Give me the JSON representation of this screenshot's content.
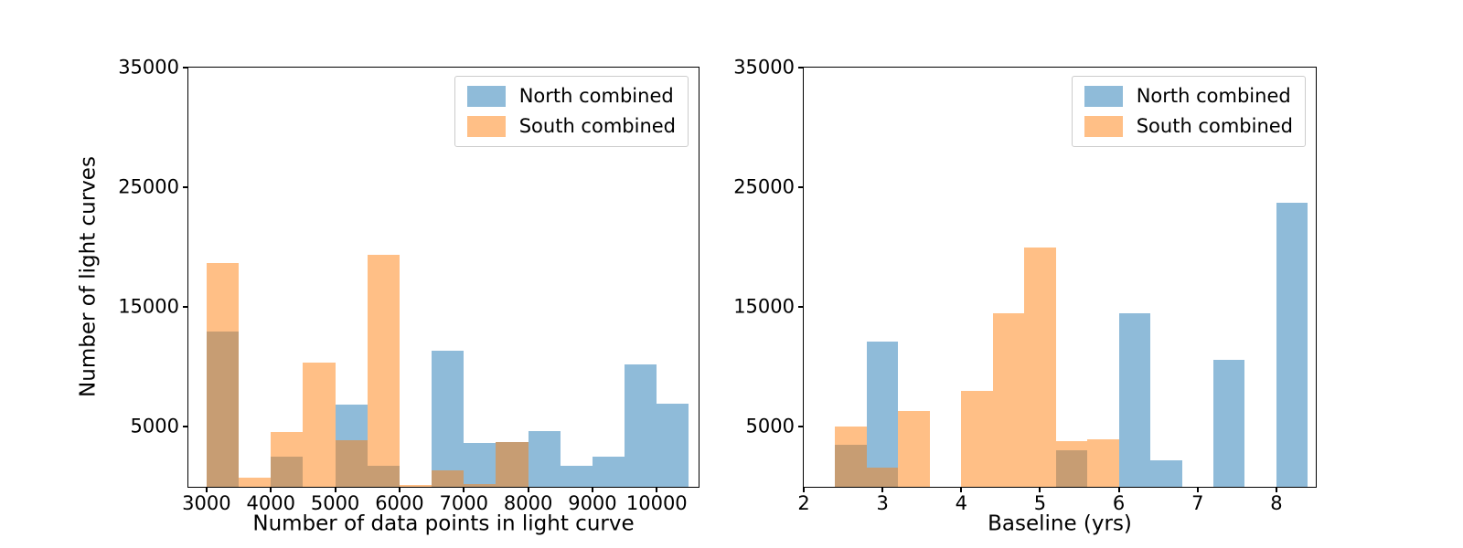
{
  "figure": {
    "background": "#ffffff",
    "north_color": "rgba(31,119,180,0.5)",
    "south_color": "rgba(255,127,14,0.5)",
    "north_color_flat": "#8fbbd9",
    "south_color_flat": "#ffbf87",
    "overlap_color_flat": "#c79d74",
    "legend_border_color": "#cccccc"
  },
  "chart_data": [
    {
      "type": "histogram",
      "title": "",
      "xlabel": "Number of data points in light curve",
      "ylabel": "Number of light curves",
      "xlim": [
        2717,
        10650
      ],
      "ylim": [
        0,
        35000
      ],
      "xticks": [
        3000,
        4000,
        5000,
        6000,
        7000,
        8000,
        9000,
        10000
      ],
      "yticks": [
        5000,
        15000,
        25000,
        35000
      ],
      "grid": false,
      "legend_position": "upper right",
      "bin_edges": [
        3000,
        3500,
        4000,
        4500,
        5000,
        5500,
        6000,
        6500,
        7000,
        7500,
        8000,
        8500,
        9000,
        9500,
        10000,
        10500
      ],
      "series": [
        {
          "name": "North combined",
          "color": "rgba(31,119,180,0.5)",
          "counts": [
            13000,
            0,
            2500,
            0,
            6900,
            1750,
            0,
            11400,
            3650,
            3700,
            4650,
            1750,
            2500,
            10250,
            6950
          ]
        },
        {
          "name": "South combined",
          "color": "rgba(255,127,14,0.5)",
          "counts": [
            18650,
            800,
            4600,
            10400,
            3900,
            19400,
            150,
            1400,
            200,
            3750,
            0,
            0,
            0,
            0,
            0
          ]
        }
      ]
    },
    {
      "type": "histogram",
      "title": "",
      "xlabel": "Baseline (yrs)",
      "ylabel": "",
      "xlim": [
        2.0,
        8.5
      ],
      "ylim": [
        0,
        35000
      ],
      "xticks": [
        2,
        3,
        4,
        5,
        6,
        7,
        8
      ],
      "yticks": [
        5000,
        15000,
        25000,
        35000
      ],
      "grid": false,
      "legend_position": "upper right",
      "bin_edges": [
        2.4,
        2.8,
        3.2,
        3.6,
        4.0,
        4.4,
        4.8,
        5.2,
        5.6,
        6.0,
        6.4,
        6.8,
        7.2,
        7.6,
        8.0,
        8.4
      ],
      "series": [
        {
          "name": "North combined",
          "color": "rgba(31,119,180,0.5)",
          "counts": [
            3500,
            12100,
            0,
            0,
            0,
            0,
            0,
            3050,
            0,
            14500,
            2250,
            0,
            10600,
            0,
            23750
          ]
        },
        {
          "name": "South combined",
          "color": "rgba(255,127,14,0.5)",
          "counts": [
            5000,
            1600,
            6300,
            0,
            8000,
            14500,
            20000,
            3850,
            3950,
            0,
            0,
            0,
            0,
            0,
            0
          ]
        }
      ]
    }
  ]
}
